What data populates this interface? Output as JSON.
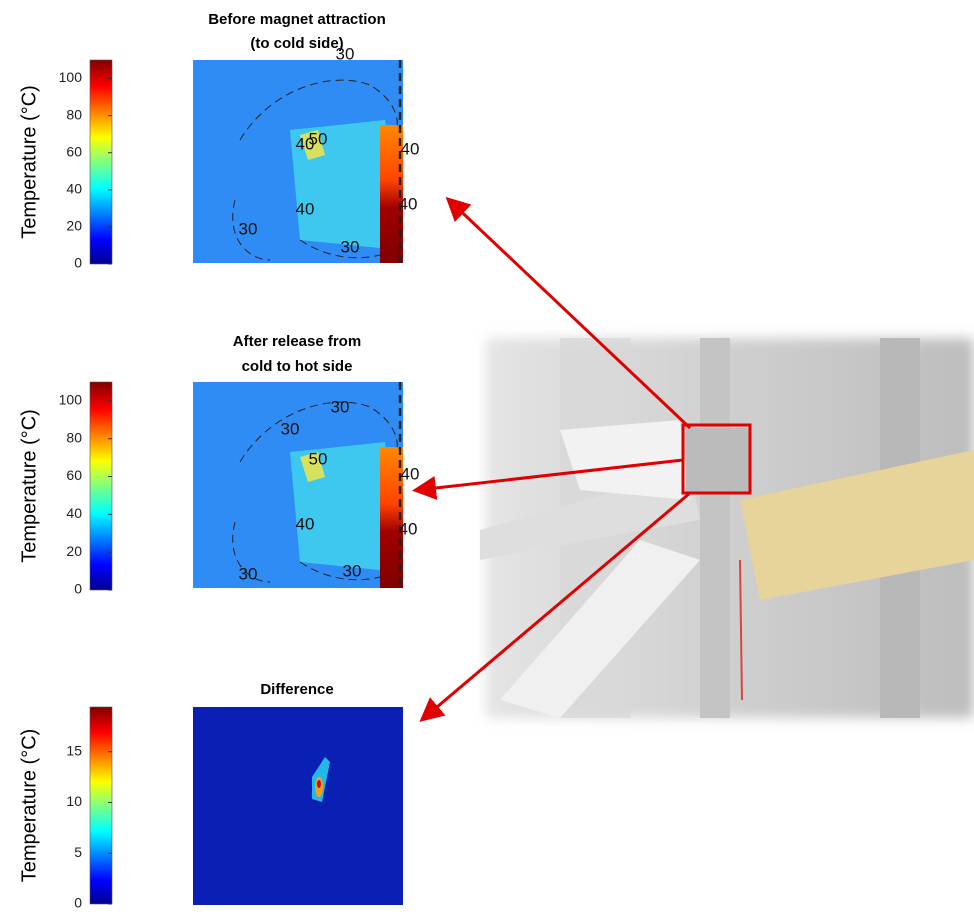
{
  "panels": [
    {
      "title": [
        "Before magnet attraction",
        "(to cold side)"
      ],
      "colorbar": {
        "label": "Temperature (°C)",
        "lim": [
          0,
          110
        ],
        "ticks": [
          0,
          20,
          40,
          60,
          80,
          100
        ]
      },
      "contour_labels": [
        "30",
        "30",
        "30",
        "40",
        "40",
        "40",
        "40",
        "50"
      ]
    },
    {
      "title": [
        "After release from",
        "cold to hot side"
      ],
      "colorbar": {
        "label": "Temperature (°C)",
        "lim": [
          0,
          110
        ],
        "ticks": [
          0,
          20,
          40,
          60,
          80,
          100
        ]
      },
      "contour_labels": [
        "30",
        "30",
        "30",
        "30",
        "40",
        "40",
        "40",
        "50"
      ]
    },
    {
      "title": [
        "Difference"
      ],
      "colorbar": {
        "label": "Temperature (°C)",
        "lim": [
          0,
          19.4
        ],
        "ticks": [
          0,
          5,
          10,
          15
        ]
      },
      "contour_labels": []
    }
  ]
}
